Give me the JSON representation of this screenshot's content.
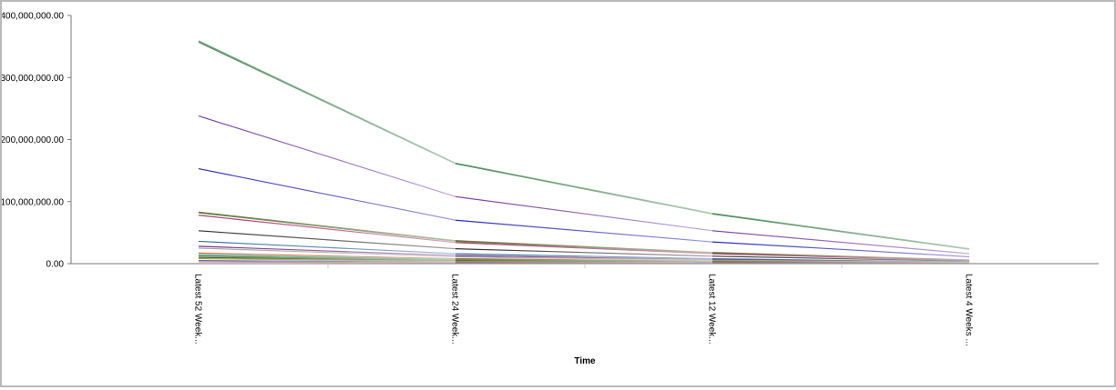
{
  "chart_data": {
    "type": "line",
    "xlabel": "Time",
    "ylabel": "",
    "categories": [
      "Latest 52 Week...",
      "Latest 24 Week...",
      "Latest 12 Week...",
      "Latest 4 Weeks ..."
    ],
    "ylim": [
      0,
      400000000
    ],
    "yticks": [
      {
        "value": 0,
        "label": "0.00"
      },
      {
        "value": 100000000,
        "label": "100,000,000.00"
      },
      {
        "value": 200000000,
        "label": "200,000,000.00"
      },
      {
        "value": 300000000,
        "label": "300,000,000.00"
      },
      {
        "value": 400000000,
        "label": "400,000,000.00"
      }
    ],
    "grid": false,
    "series": [
      {
        "color": "#5c9c6c",
        "values": [
          359000000,
          162000000,
          81000000,
          24000000
        ]
      },
      {
        "color": "#4f8a5a",
        "values": [
          357000000,
          161000000,
          80000000,
          23000000
        ]
      },
      {
        "color": "#7a3ca8",
        "values": [
          238000000,
          108000000,
          53000000,
          16000000
        ]
      },
      {
        "color": "#2a2ab8",
        "values": [
          153000000,
          70000000,
          35000000,
          11000000
        ]
      },
      {
        "color": "#8c5a2c",
        "values": [
          83000000,
          37000000,
          18000000,
          6000000
        ]
      },
      {
        "color": "#3c8c3c",
        "values": [
          82000000,
          36000000,
          17000000,
          5500000
        ]
      },
      {
        "color": "#b03070",
        "values": [
          78000000,
          34000000,
          16000000,
          5000000
        ]
      },
      {
        "color": "#303030",
        "values": [
          53000000,
          24000000,
          12000000,
          4000000
        ]
      },
      {
        "color": "#2c6ca0",
        "values": [
          36000000,
          16000000,
          8000000,
          2500000
        ]
      },
      {
        "color": "#7c2c7c",
        "values": [
          28000000,
          13000000,
          6500000,
          2000000
        ]
      },
      {
        "color": "#a0a0a0",
        "values": [
          25000000,
          11000000,
          5500000,
          1800000
        ]
      },
      {
        "color": "#c06020",
        "values": [
          17000000,
          8000000,
          4000000,
          1300000
        ]
      },
      {
        "color": "#2c9c9c",
        "values": [
          14000000,
          6500000,
          3200000,
          1000000
        ]
      },
      {
        "color": "#609c30",
        "values": [
          12000000,
          5500000,
          2800000,
          900000
        ]
      },
      {
        "color": "#505050",
        "values": [
          10000000,
          4500000,
          2300000,
          700000
        ]
      },
      {
        "color": "#9c9c30",
        "values": [
          8000000,
          3600000,
          1800000,
          600000
        ]
      },
      {
        "color": "#6060c0",
        "values": [
          5000000,
          2300000,
          1200000,
          400000
        ]
      },
      {
        "color": "#c08080",
        "values": [
          3000000,
          1400000,
          700000,
          250000
        ]
      }
    ]
  }
}
